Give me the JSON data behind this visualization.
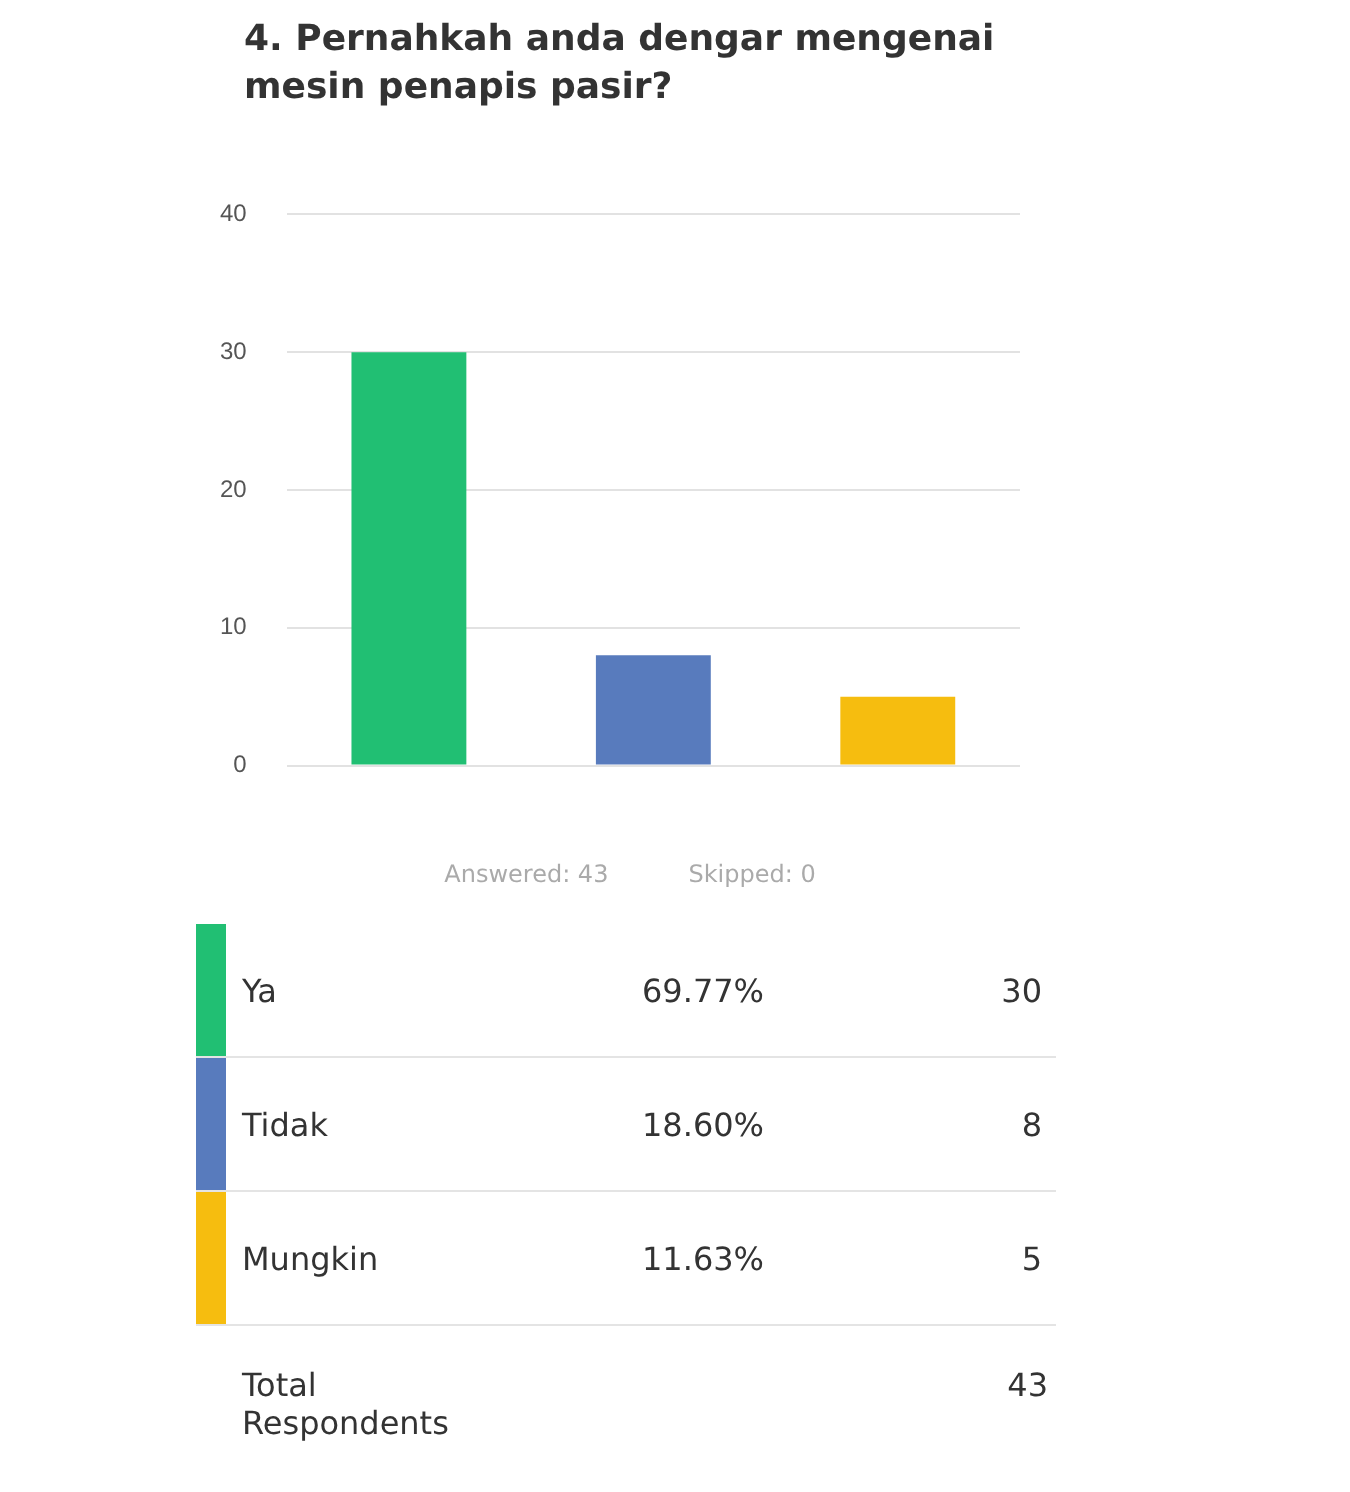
{
  "chart_data": [
    {
      "type": "bar",
      "title": "4. Pernahkah anda dengar mengenai mesin penapis pasir?",
      "categories": [
        null,
        null,
        null
      ],
      "values": [
        30,
        8,
        5
      ],
      "colors": [
        "#21bf73",
        "#587bbd",
        "#f6bd0f"
      ],
      "ylim": [
        0,
        40
      ],
      "yticks": [
        0,
        10,
        20,
        30,
        40
      ],
      "grid": "y",
      "tick_labels": "y",
      "annotations": [
        "Answered: 43",
        "Skipped: 0"
      ]
    },
    {
      "type": "other",
      "colors": [
        "#21bf73",
        "#587bbd",
        "#f6bd0f"
      ],
      "annotations": [
        "Ya",
        "69.77%",
        "30",
        "Tidak",
        "18.60%",
        "8",
        "Mungkin",
        "11.63%",
        "5",
        "Total Respondents",
        "43"
      ]
    }
  ]
}
